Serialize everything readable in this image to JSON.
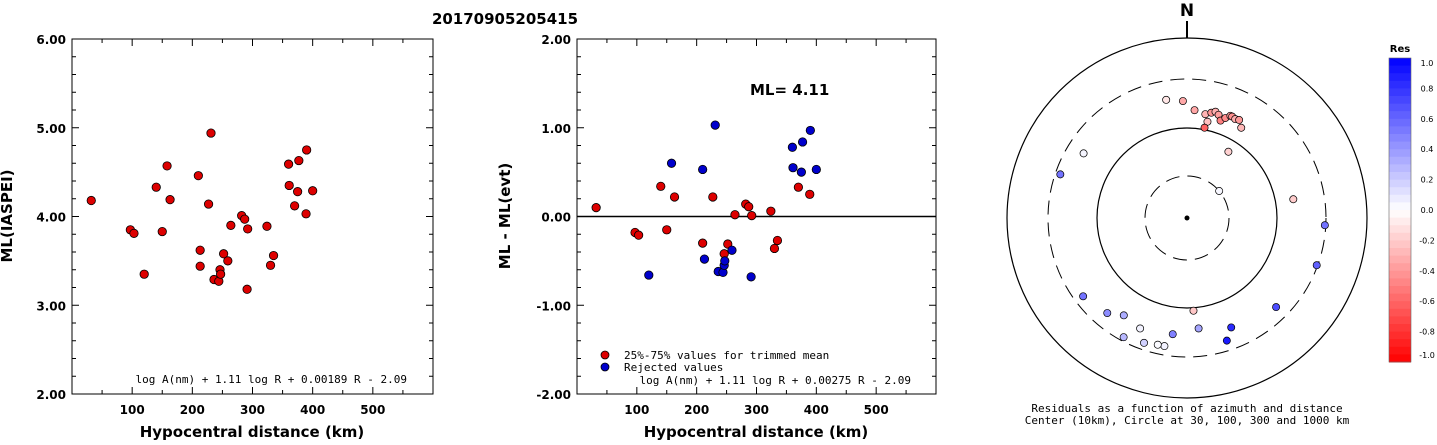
{
  "title": "20170905205415",
  "chart_data": [
    {
      "type": "scatter",
      "xlabel": "Hypocentral distance (km)",
      "ylabel": "ML(IASPEI)",
      "xlim": [
        0,
        600
      ],
      "ylim": [
        2.0,
        6.0
      ],
      "xticks": [
        "100",
        "200",
        "300",
        "400",
        "500"
      ],
      "xtick_values": [
        100,
        200,
        300,
        400,
        500
      ],
      "yticks": [
        "2.00",
        "3.00",
        "4.00",
        "5.00",
        "6.00"
      ],
      "ytick_values": [
        2,
        3,
        4,
        5,
        6
      ],
      "formula": "log A(nm) + 1.11 log R + 0.00189 R - 2.09",
      "points": [
        [
          32,
          4.18
        ],
        [
          97,
          3.85
        ],
        [
          103,
          3.81
        ],
        [
          120,
          3.35
        ],
        [
          140,
          4.33
        ],
        [
          150,
          3.83
        ],
        [
          158,
          4.57
        ],
        [
          163,
          4.19
        ],
        [
          210,
          4.46
        ],
        [
          213,
          3.62
        ],
        [
          213,
          3.44
        ],
        [
          227,
          4.14
        ],
        [
          231,
          4.94
        ],
        [
          236,
          3.29
        ],
        [
          244,
          3.27
        ],
        [
          246,
          3.4
        ],
        [
          247,
          3.35
        ],
        [
          252,
          3.58
        ],
        [
          259,
          3.5
        ],
        [
          264,
          3.9
        ],
        [
          282,
          4.01
        ],
        [
          287,
          3.97
        ],
        [
          292,
          3.86
        ],
        [
          291,
          3.18
        ],
        [
          324,
          3.89
        ],
        [
          330,
          3.45
        ],
        [
          335,
          3.56
        ],
        [
          360,
          4.59
        ],
        [
          361,
          4.35
        ],
        [
          370,
          4.12
        ],
        [
          375,
          4.28
        ],
        [
          377,
          4.63
        ],
        [
          389,
          4.03
        ],
        [
          390,
          4.75
        ],
        [
          400,
          4.29
        ]
      ]
    },
    {
      "type": "scatter",
      "xlabel": "Hypocentral distance (km)",
      "ylabel": "ML - ML(evt)",
      "xlim": [
        0,
        600
      ],
      "ylim": [
        -2.0,
        2.0
      ],
      "xticks": [
        "100",
        "200",
        "300",
        "400",
        "500"
      ],
      "xtick_values": [
        100,
        200,
        300,
        400,
        500
      ],
      "yticks": [
        "-2.00",
        "-1.00",
        "0.00",
        "1.00",
        "2.00"
      ],
      "ytick_values": [
        -2,
        -1,
        0,
        1,
        2
      ],
      "annotation": "ML= 4.11",
      "formula": "log A(nm) + 1.11 log R + 0.00275 R - 2.09",
      "legend": [
        {
          "label": "25%-75% values for trimmed mean",
          "color": "#dd0000"
        },
        {
          "label": "Rejected values",
          "color": "#0000cc"
        }
      ],
      "trimmed": [
        [
          32,
          0.1
        ],
        [
          97,
          -0.18
        ],
        [
          103,
          -0.21
        ],
        [
          140,
          0.34
        ],
        [
          150,
          -0.15
        ],
        [
          163,
          0.22
        ],
        [
          210,
          -0.3
        ],
        [
          227,
          0.22
        ],
        [
          246,
          -0.42
        ],
        [
          252,
          -0.31
        ],
        [
          264,
          0.02
        ],
        [
          282,
          0.14
        ],
        [
          287,
          0.11
        ],
        [
          292,
          0.01
        ],
        [
          324,
          0.06
        ],
        [
          330,
          -0.36
        ],
        [
          335,
          -0.27
        ],
        [
          370,
          0.33
        ],
        [
          389,
          0.25
        ]
      ],
      "rejected": [
        [
          120,
          -0.66
        ],
        [
          158,
          0.6
        ],
        [
          210,
          0.53
        ],
        [
          213,
          -0.48
        ],
        [
          231,
          1.03
        ],
        [
          236,
          -0.62
        ],
        [
          244,
          -0.63
        ],
        [
          246,
          -0.55
        ],
        [
          247,
          -0.5
        ],
        [
          259,
          -0.38
        ],
        [
          291,
          -0.68
        ],
        [
          360,
          0.78
        ],
        [
          361,
          0.55
        ],
        [
          375,
          0.5
        ],
        [
          377,
          0.84
        ],
        [
          390,
          0.97
        ],
        [
          400,
          0.53
        ]
      ]
    },
    {
      "type": "scatter",
      "north_label": "N",
      "caption": "Residuals as a function of azimuth and distance",
      "caption2": "Center (10km), Circle at 30, 100, 300 and 1000 km",
      "colorbar_title": "Res",
      "colorbar_ticks": [
        "1.0",
        "0.8",
        "0.6",
        "0.4",
        "0.2",
        "0.0",
        "-0.2",
        "-0.4",
        "-0.6",
        "-0.8",
        "-1.0"
      ],
      "colorbar_tick_values": [
        1.0,
        0.8,
        0.6,
        0.4,
        0.2,
        0.0,
        -0.2,
        -0.4,
        -0.6,
        -0.8,
        -1.0
      ],
      "stations": [
        {
          "az": -10,
          "r": 0.857,
          "res": -0.1
        },
        {
          "az": -2,
          "r": 0.836,
          "res": -0.34
        },
        {
          "az": 4,
          "r": 0.772,
          "res": -0.35
        },
        {
          "az": 10,
          "r": 0.753,
          "res": -0.3
        },
        {
          "az": 13,
          "r": 0.772,
          "res": -0.42
        },
        {
          "az": 15,
          "r": 0.786,
          "res": -0.31
        },
        {
          "az": 17,
          "r": 0.771,
          "res": -0.38
        },
        {
          "az": 19,
          "r": 0.736,
          "res": -0.5
        },
        {
          "az": 21,
          "r": 0.765,
          "res": -0.45
        },
        {
          "az": 23,
          "r": 0.793,
          "res": -0.36
        },
        {
          "az": 24,
          "r": 0.793,
          "res": -0.44
        },
        {
          "az": 26,
          "r": 0.786,
          "res": -0.32
        },
        {
          "az": 28,
          "r": 0.793,
          "res": -0.4
        },
        {
          "az": 31,
          "r": 0.752,
          "res": -0.28
        },
        {
          "az": 12,
          "r": 0.703,
          "res": -0.25
        },
        {
          "az": 11,
          "r": 0.657,
          "res": -0.62
        },
        {
          "az": 32,
          "r": 0.558,
          "res": -0.18
        },
        {
          "az": 50,
          "r": 0.3,
          "res": 0.03
        },
        {
          "az": 80,
          "r": 0.771,
          "res": -0.2
        },
        {
          "az": 93,
          "r": 0.986,
          "res": 0.55
        },
        {
          "az": 110,
          "r": 0.986,
          "res": 0.62
        },
        {
          "az": 135,
          "r": 0.9,
          "res": 0.7
        },
        {
          "az": 158,
          "r": 0.843,
          "res": 0.83
        },
        {
          "az": 162,
          "r": 0.921,
          "res": 0.9
        },
        {
          "az": 176,
          "r": 0.664,
          "res": -0.22
        },
        {
          "az": 174,
          "r": 0.793,
          "res": 0.35
        },
        {
          "az": 187,
          "r": 0.836,
          "res": 0.5
        },
        {
          "az": 190,
          "r": 0.929,
          "res": 0.05
        },
        {
          "az": 193,
          "r": 0.929,
          "res": 0.02
        },
        {
          "az": 199,
          "r": 0.943,
          "res": 0.18
        },
        {
          "az": 203,
          "r": 0.857,
          "res": 0.05
        },
        {
          "az": 208,
          "r": 0.964,
          "res": 0.28
        },
        {
          "az": 213,
          "r": 0.829,
          "res": 0.32
        },
        {
          "az": 220,
          "r": 0.886,
          "res": 0.45
        },
        {
          "az": 233,
          "r": 0.929,
          "res": 0.55
        },
        {
          "az": 289,
          "r": 0.957,
          "res": 0.55
        },
        {
          "az": 302,
          "r": 0.871,
          "res": 0.04
        }
      ]
    }
  ]
}
